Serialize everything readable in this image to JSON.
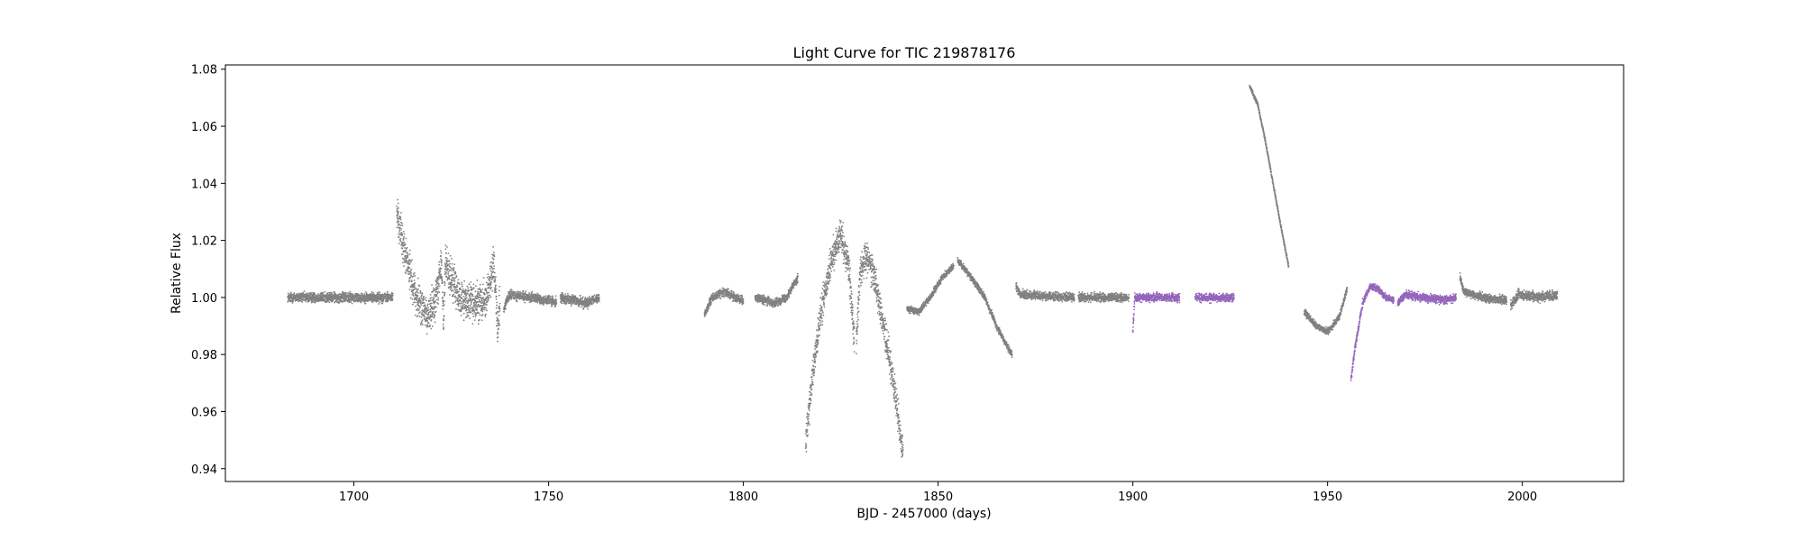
{
  "chart_data": {
    "type": "scatter",
    "title": "Light Curve for TIC 219878176",
    "xlabel": "BJD - 2457000 (days)",
    "ylabel": "Relative Flux",
    "xlim": [
      1667,
      2026
    ],
    "ylim": [
      0.9355,
      1.0815
    ],
    "xticks": [
      1700,
      1750,
      1800,
      1850,
      1900,
      1950,
      2000
    ],
    "yticks": [
      0.94,
      0.96,
      0.98,
      1.0,
      1.02,
      1.04,
      1.06,
      1.08
    ],
    "xtick_labels": [
      "1700",
      "1750",
      "1800",
      "1850",
      "1900",
      "1950",
      "2000"
    ],
    "ytick_labels": [
      "0.94",
      "0.96",
      "0.98",
      "1.00",
      "1.02",
      "1.04",
      "1.06",
      "1.08"
    ],
    "grid": false,
    "legend": "none",
    "colors": {
      "gray": "#808080",
      "purple": "#9467bd"
    },
    "series": [
      {
        "color": "gray",
        "noise": 0.0012,
        "points": [
          [
            1683,
            1.0
          ],
          [
            1710,
            1.0
          ]
        ]
      },
      {
        "color": "gray",
        "noise": 0.0045,
        "points": [
          [
            1711,
            1.03
          ],
          [
            1713,
            1.016
          ],
          [
            1716,
            1.0
          ],
          [
            1719,
            0.993
          ],
          [
            1721,
            1.0
          ],
          [
            1722.5,
            1.012
          ],
          [
            1723,
            0.99
          ],
          [
            1723.5,
            1.012
          ],
          [
            1727,
            1.0
          ],
          [
            1731,
            0.998
          ],
          [
            1734,
            1.0
          ],
          [
            1736,
            1.012
          ],
          [
            1737,
            0.988
          ],
          [
            1737.5,
            1.0
          ]
        ]
      },
      {
        "color": "gray",
        "noise": 0.0012,
        "points": [
          [
            1738.5,
            0.996
          ],
          [
            1740,
            1.001
          ],
          [
            1750,
            0.999
          ],
          [
            1752,
            0.998
          ]
        ]
      },
      {
        "color": "gray",
        "noise": 0.0012,
        "points": [
          [
            1753,
            1.0
          ],
          [
            1760,
            0.998
          ],
          [
            1763,
            1.0
          ]
        ]
      },
      {
        "color": "gray",
        "noise": 0.001,
        "points": [
          [
            1790,
            0.994
          ],
          [
            1792,
            1.0
          ],
          [
            1795,
            1.002
          ],
          [
            1798,
            1.0
          ],
          [
            1800,
            0.999
          ]
        ]
      },
      {
        "color": "gray",
        "noise": 0.001,
        "points": [
          [
            1803,
            1.0
          ],
          [
            1808,
            0.998
          ],
          [
            1811,
            1.0
          ],
          [
            1814,
            1.007
          ]
        ]
      },
      {
        "color": "gray",
        "noise": 0.004,
        "points": [
          [
            1816,
            0.95
          ],
          [
            1818,
            0.975
          ],
          [
            1820,
            0.995
          ],
          [
            1823,
            1.015
          ],
          [
            1825,
            1.022
          ],
          [
            1827,
            1.012
          ],
          [
            1828.5,
            0.985
          ]
        ]
      },
      {
        "color": "gray",
        "noise": 0.004,
        "points": [
          [
            1829,
            0.985
          ],
          [
            1830,
            1.01
          ],
          [
            1832,
            1.015
          ],
          [
            1834,
            1.005
          ],
          [
            1836,
            0.99
          ],
          [
            1838,
            0.975
          ],
          [
            1840,
            0.955
          ],
          [
            1841,
            0.945
          ]
        ]
      },
      {
        "color": "gray",
        "noise": 0.0008,
        "points": [
          [
            1842,
            0.996
          ],
          [
            1845,
            0.995
          ],
          [
            1848,
            1.0
          ],
          [
            1851,
            1.007
          ],
          [
            1854,
            1.011
          ]
        ]
      },
      {
        "color": "gray",
        "noise": 0.0008,
        "points": [
          [
            1855,
            1.013
          ],
          [
            1858,
            1.008
          ],
          [
            1862,
            1.0
          ],
          [
            1865,
            0.99
          ],
          [
            1868,
            0.982
          ],
          [
            1869,
            0.98
          ]
        ]
      },
      {
        "color": "gray",
        "noise": 0.001,
        "points": [
          [
            1870,
            1.004
          ],
          [
            1871,
            1.001
          ],
          [
            1885,
            1.0
          ]
        ]
      },
      {
        "color": "gray",
        "noise": 0.001,
        "points": [
          [
            1886,
            1.0
          ],
          [
            1899,
            1.0
          ]
        ]
      },
      {
        "color": "purple",
        "noise": 0.001,
        "points": [
          [
            1900,
            0.988
          ],
          [
            1900.5,
            1.0
          ],
          [
            1912,
            1.0
          ]
        ]
      },
      {
        "color": "purple",
        "noise": 0.001,
        "points": [
          [
            1916,
            1.0
          ],
          [
            1926,
            1.0
          ]
        ]
      },
      {
        "color": "gray",
        "noise": 0.0005,
        "points": [
          [
            1930,
            1.074
          ],
          [
            1932,
            1.068
          ],
          [
            1934,
            1.055
          ],
          [
            1936,
            1.04
          ],
          [
            1938,
            1.025
          ],
          [
            1940,
            1.011
          ]
        ]
      },
      {
        "color": "gray",
        "noise": 0.0008,
        "points": [
          [
            1944,
            0.995
          ],
          [
            1947,
            0.99
          ],
          [
            1950,
            0.988
          ],
          [
            1953,
            0.993
          ],
          [
            1955,
            1.003
          ]
        ]
      },
      {
        "color": "purple",
        "noise": 0.0008,
        "points": [
          [
            1956,
            0.971
          ],
          [
            1957,
            0.982
          ],
          [
            1959,
            0.998
          ],
          [
            1961,
            1.004
          ],
          [
            1963,
            1.003
          ],
          [
            1965,
            1.0
          ],
          [
            1967,
            0.999
          ]
        ]
      },
      {
        "color": "purple",
        "noise": 0.001,
        "points": [
          [
            1968,
            0.998
          ],
          [
            1970,
            1.001
          ],
          [
            1975,
            1.0
          ],
          [
            1980,
            0.999
          ],
          [
            1983,
            1.0
          ]
        ]
      },
      {
        "color": "gray",
        "noise": 0.001,
        "points": [
          [
            1984,
            1.007
          ],
          [
            1985,
            1.002
          ],
          [
            1990,
            1.0
          ],
          [
            1996,
            0.999
          ]
        ]
      },
      {
        "color": "gray",
        "noise": 0.0012,
        "points": [
          [
            1997,
            0.997
          ],
          [
            1999,
            1.001
          ],
          [
            2005,
            1.0
          ],
          [
            2009,
            1.001
          ]
        ]
      }
    ]
  }
}
